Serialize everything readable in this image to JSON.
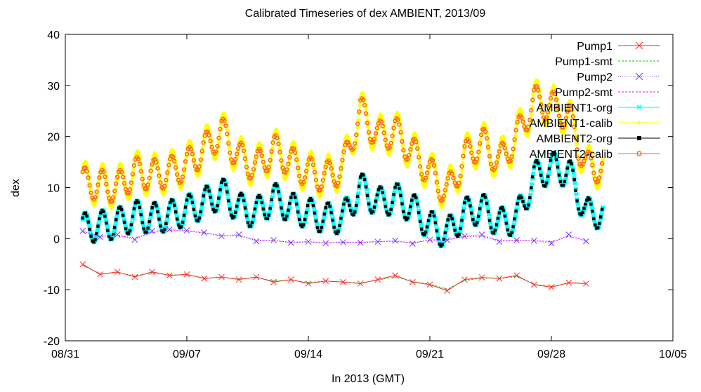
{
  "chart_data": {
    "type": "line",
    "title": "Calibrated Timeseries of dex AMBIENT, 2013/09",
    "xlabel": "In 2013 (GMT)",
    "ylabel": "dex",
    "xlim": [
      "2013-08-31",
      "2013-10-05"
    ],
    "ylim": [
      -20,
      40
    ],
    "xticks": [
      {
        "date": "2013-08-31",
        "label": "08/31"
      },
      {
        "date": "2013-09-07",
        "label": "09/07"
      },
      {
        "date": "2013-09-14",
        "label": "09/14"
      },
      {
        "date": "2013-09-21",
        "label": "09/21"
      },
      {
        "date": "2013-09-28",
        "label": "09/28"
      },
      {
        "date": "2013-10-05",
        "label": "10/05"
      }
    ],
    "yticks": [
      -20,
      -10,
      0,
      10,
      20,
      30,
      40
    ],
    "legend_position": "top-right",
    "series": [
      {
        "name": "Pump1",
        "color": "#ff2a2a",
        "marker": "x",
        "style": "points-errorbars",
        "x": [
          "2013-09-01",
          "2013-09-02",
          "2013-09-03",
          "2013-09-04",
          "2013-09-05",
          "2013-09-06",
          "2013-09-07",
          "2013-09-08",
          "2013-09-09",
          "2013-09-10",
          "2013-09-11",
          "2013-09-12",
          "2013-09-13",
          "2013-09-14",
          "2013-09-15",
          "2013-09-16",
          "2013-09-17",
          "2013-09-18",
          "2013-09-19",
          "2013-09-20",
          "2013-09-21",
          "2013-09-22",
          "2013-09-23",
          "2013-09-24",
          "2013-09-25",
          "2013-09-26",
          "2013-09-27",
          "2013-09-28",
          "2013-09-29",
          "2013-09-30"
        ],
        "y": [
          -5.0,
          -7.0,
          -6.5,
          -7.5,
          -6.5,
          -7.2,
          -7.0,
          -7.8,
          -7.5,
          -8.0,
          -7.5,
          -8.5,
          -8.0,
          -8.8,
          -8.3,
          -8.5,
          -8.8,
          -8.0,
          -7.2,
          -8.5,
          -9.0,
          -10.2,
          -8.0,
          -7.6,
          -7.8,
          -7.2,
          -9.0,
          -9.5,
          -8.6,
          -8.8
        ]
      },
      {
        "name": "Pump1-smt",
        "color": "#00cc00",
        "marker": "none",
        "style": "dashed-line",
        "x": [
          "2013-09-01",
          "2013-09-02",
          "2013-09-03",
          "2013-09-04",
          "2013-09-05",
          "2013-09-06",
          "2013-09-07",
          "2013-09-08",
          "2013-09-09",
          "2013-09-10",
          "2013-09-11",
          "2013-09-12",
          "2013-09-13",
          "2013-09-14",
          "2013-09-15",
          "2013-09-16",
          "2013-09-17",
          "2013-09-18",
          "2013-09-19",
          "2013-09-20",
          "2013-09-21",
          "2013-09-22",
          "2013-09-23",
          "2013-09-24",
          "2013-09-25",
          "2013-09-26",
          "2013-09-27",
          "2013-09-28",
          "2013-09-29",
          "2013-09-30"
        ],
        "y": [
          -5.2,
          -6.9,
          -6.6,
          -7.3,
          -6.7,
          -7.1,
          -7.1,
          -7.7,
          -7.6,
          -7.9,
          -7.6,
          -8.3,
          -8.1,
          -8.6,
          -8.3,
          -8.5,
          -8.7,
          -8.1,
          -7.5,
          -8.4,
          -8.9,
          -9.9,
          -8.2,
          -7.7,
          -7.8,
          -7.4,
          -8.9,
          -9.4,
          -8.7,
          -8.8
        ]
      },
      {
        "name": "Pump2",
        "color": "#7733ff",
        "marker": "x",
        "style": "dotted-line-points",
        "x": [
          "2013-09-01",
          "2013-09-02",
          "2013-09-03",
          "2013-09-04",
          "2013-09-05",
          "2013-09-06",
          "2013-09-07",
          "2013-09-08",
          "2013-09-09",
          "2013-09-10",
          "2013-09-11",
          "2013-09-12",
          "2013-09-13",
          "2013-09-14",
          "2013-09-15",
          "2013-09-16",
          "2013-09-17",
          "2013-09-18",
          "2013-09-19",
          "2013-09-20",
          "2013-09-21",
          "2013-09-22",
          "2013-09-23",
          "2013-09-24",
          "2013-09-25",
          "2013-09-26",
          "2013-09-27",
          "2013-09-28",
          "2013-09-29",
          "2013-09-30"
        ],
        "y": [
          1.5,
          0.3,
          0.8,
          -0.2,
          1.5,
          1.8,
          1.6,
          1.2,
          0.5,
          0.8,
          -0.5,
          -0.3,
          -0.8,
          -0.6,
          -0.9,
          -0.7,
          -0.8,
          -0.6,
          -0.4,
          -1.0,
          -0.2,
          -0.3,
          0.5,
          0.8,
          -0.6,
          -0.3,
          -0.4,
          -0.9,
          0.8,
          -0.5
        ]
      },
      {
        "name": "Pump2-smt",
        "color": "#ee00ee",
        "marker": "none",
        "style": "dashed-line",
        "x": [
          "2013-09-01",
          "2013-09-02",
          "2013-09-03",
          "2013-09-04",
          "2013-09-05",
          "2013-09-06",
          "2013-09-07",
          "2013-09-08",
          "2013-09-09",
          "2013-09-10",
          "2013-09-11",
          "2013-09-12",
          "2013-09-13",
          "2013-09-14",
          "2013-09-15",
          "2013-09-16",
          "2013-09-17",
          "2013-09-18",
          "2013-09-19",
          "2013-09-20",
          "2013-09-21",
          "2013-09-22",
          "2013-09-23",
          "2013-09-24",
          "2013-09-25",
          "2013-09-26",
          "2013-09-27",
          "2013-09-28",
          "2013-09-29",
          "2013-09-30"
        ],
        "y": [
          1.3,
          0.5,
          0.6,
          0.1,
          1.2,
          1.6,
          1.5,
          1.1,
          0.6,
          0.6,
          -0.3,
          -0.4,
          -0.7,
          -0.6,
          -0.8,
          -0.7,
          -0.7,
          -0.6,
          -0.5,
          -0.8,
          -0.3,
          -0.2,
          0.4,
          0.5,
          -0.4,
          -0.3,
          -0.4,
          -0.6,
          0.4,
          -0.3
        ]
      },
      {
        "name": "AMBIENT1-org",
        "color": "#00ffff",
        "marker": "star",
        "style": "dense-band",
        "base": [
          2.0,
          2.5,
          3.0,
          4.5,
          4.0,
          4.5,
          5.5,
          7.0,
          9.0,
          6.0,
          5.0,
          8.0,
          6.0,
          5.0,
          4.0,
          4.0,
          10.0,
          7.0,
          8.0,
          6.0,
          2.5,
          1.0,
          5.0,
          6.0,
          3.0,
          4.0,
          12.0,
          14.0,
          13.0,
          5.0
        ],
        "amplitude": 3.0
      },
      {
        "name": "AMBIENT1-calib",
        "color": "#ffff00",
        "marker": "plus",
        "style": "dense-band",
        "base": [
          11.0,
          10.5,
          10.0,
          13.0,
          12.5,
          13.0,
          14.5,
          17.5,
          21.0,
          16.0,
          14.0,
          17.5,
          15.0,
          13.0,
          12.0,
          14.0,
          25.0,
          20.0,
          21.0,
          17.0,
          13.0,
          9.0,
          16.0,
          19.0,
          15.0,
          20.0,
          27.0,
          26.0,
          24.0,
          14.0
        ],
        "amplitude": 4.0
      },
      {
        "name": "AMBIENT2-org",
        "color": "#000000",
        "marker": "square",
        "style": "dense-points",
        "base": [
          2.0,
          2.5,
          3.0,
          4.5,
          4.0,
          4.5,
          5.5,
          7.0,
          9.0,
          6.0,
          5.0,
          8.0,
          6.0,
          5.0,
          4.0,
          4.0,
          10.0,
          7.0,
          8.0,
          6.0,
          2.5,
          1.0,
          5.0,
          6.0,
          3.0,
          4.0,
          12.0,
          14.0,
          13.0,
          5.0
        ],
        "amplitude": 3.0
      },
      {
        "name": "AMBIENT2-calib",
        "color": "#ff6622",
        "marker": "circle",
        "style": "dense-points",
        "base": [
          11.0,
          10.5,
          10.0,
          13.0,
          12.5,
          13.0,
          14.5,
          17.5,
          21.0,
          16.0,
          14.0,
          17.5,
          15.0,
          13.0,
          12.0,
          14.0,
          25.0,
          20.0,
          21.0,
          17.0,
          13.0,
          9.0,
          16.0,
          19.0,
          15.0,
          20.0,
          27.0,
          26.0,
          24.0,
          14.0
        ],
        "amplitude": 3.0
      }
    ]
  }
}
